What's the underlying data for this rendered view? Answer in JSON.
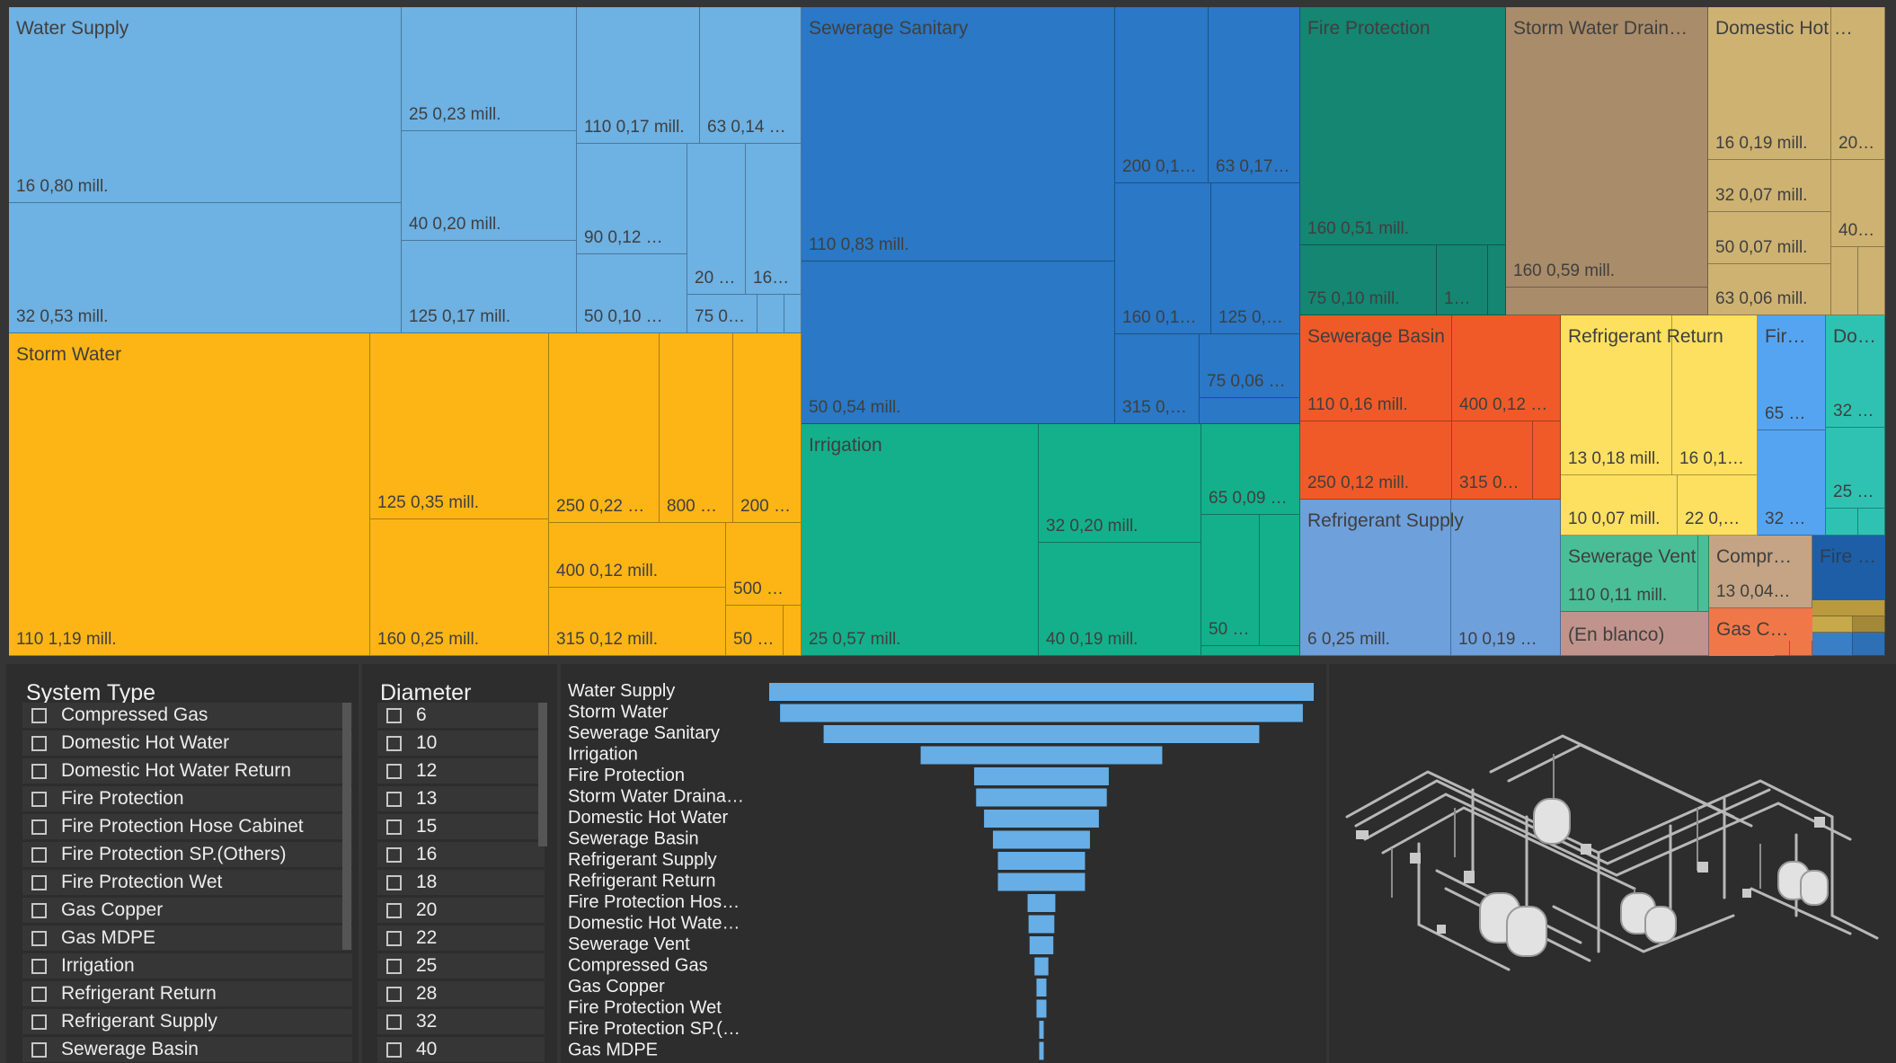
{
  "treemap": {
    "groups": {
      "water_supply": "Water Supply",
      "storm_water": "Storm Water",
      "sewerage_sanitary": "Sewerage Sanitary",
      "irrigation": "Irrigation",
      "fire_protection": "Fire Protection",
      "storm_water_drain": "Storm Water Drain…",
      "domestic_hot": "Domestic Hot …",
      "sewerage_basin": "Sewerage Basin",
      "refrigerant_return": "Refrigerant Return",
      "fire_small": "Fir…",
      "do_small": "Do…",
      "refrigerant_supply": "Refrigerant Supply",
      "sewerage_vent": "Sewerage Vent",
      "compr": "Compr…",
      "fire_dark": "Fire …",
      "en_blanco": "(En blanco)",
      "gas_c": "Gas C…"
    },
    "labels": {
      "ws_16": "16 0,80 mill.",
      "ws_32": "32 0,53 mill.",
      "ws_25": "25 0,23 mill.",
      "ws_40": "40 0,20 mill.",
      "ws_125": "125 0,17 mill.",
      "ws_110": "110 0,17 mill.",
      "ws_63": "63 0,14 …",
      "ws_90": "90 0,12 …",
      "ws_50": "50 0,10 …",
      "ws_20": "20 …",
      "ws_16b": "16…",
      "ws_75": "75 0…",
      "sw_110": "110 1,19 mill.",
      "sw_125": "125 0,35 mill.",
      "sw_160": "160 0,25 mill.",
      "sw_250": "250 0,22 …",
      "sw_800": "800 …",
      "sw_200": "200 …",
      "sw_400": "400 0,12 mill.",
      "sw_315": "315 0,12 mill.",
      "sw_500": "500 …",
      "sw_50": "50 …",
      "ss_110": "110 0,83 mill.",
      "ss_50": "50 0,54 mill.",
      "ss_200": "200 0,1…",
      "ss_63": "63 0,17…",
      "ss_160": "160 0,1…",
      "ss_125": "125 0,…",
      "ss_75": "75 0,06 …",
      "ss_315": "315 0,…",
      "ir_25": "25 0,57 mill.",
      "ir_32": "32 0,20 mill.",
      "ir_40": "40 0,19 mill.",
      "ir_65": "65 0,09 …",
      "ir_50": "50 …",
      "fp_160": "160 0,51 mill.",
      "fp_75": "75 0,10 mill.",
      "fp_1": "1…",
      "swd_160": "160 0,59 mill.",
      "dh_16": "16 0,19 mill.",
      "dh_20": "20…",
      "dh_32": "32 0,07 mill.",
      "dh_40": "40…",
      "dh_50": "50 0,07 mill.",
      "dh_63": "63 0,06 mill.",
      "sb_110": "110 0,16 mill.",
      "sb_400": "400 0,12 …",
      "sb_250": "250 0,12 mill.",
      "sb_315": "315 0…",
      "rr_13": "13 0,18 mill.",
      "rr_16": "16 0,1…",
      "rr_10": "10 0,07 mill.",
      "rr_22": "22 0,…",
      "fir_65": "65 …",
      "fir_32": "32 …",
      "do_32": "32 …",
      "do_25": "25 …",
      "rs_6": "6 0,25 mill.",
      "rs_10": "10 0,19 …",
      "sv_110": "110 0,11 mill.",
      "co_13": "13 0,04…"
    }
  },
  "system_type_slicer": {
    "title": "System Type",
    "items": [
      "Compressed Gas",
      "Domestic Hot Water",
      "Domestic Hot Water Return",
      "Fire Protection",
      "Fire Protection Hose Cabinet",
      "Fire Protection SP.(Others)",
      "Fire Protection Wet",
      "Gas Copper",
      "Gas MDPE",
      "Irrigation",
      "Refrigerant Return",
      "Refrigerant Supply",
      "Sewerage Basin"
    ]
  },
  "diameter_slicer": {
    "title": "Diameter",
    "items": [
      "6",
      "10",
      "12",
      "13",
      "15",
      "16",
      "18",
      "20",
      "22",
      "25",
      "28",
      "32",
      "40"
    ]
  },
  "chart_data": {
    "type": "bar",
    "orientation": "horizontal-funnel",
    "categories": [
      "Water Supply",
      "Storm Water",
      "Sewerage Sanitary",
      "Irrigation",
      "Fire Protection",
      "Storm Water Draina…",
      "Domestic Hot Water",
      "Sewerage Basin",
      "Refrigerant Supply",
      "Refrigerant Return",
      "Fire Protection Hos…",
      "Domestic Hot Wate…",
      "Sewerage Vent",
      "Compressed Gas",
      "Gas Copper",
      "Fire Protection Wet",
      "Fire Protection SP.(…",
      "Gas MDPE"
    ],
    "values": [
      2.75,
      2.64,
      2.2,
      1.22,
      0.68,
      0.66,
      0.58,
      0.49,
      0.44,
      0.44,
      0.14,
      0.13,
      0.12,
      0.07,
      0.05,
      0.05,
      0.02,
      0.02
    ],
    "bar_color": "#67aee6",
    "title": "",
    "xlabel": "",
    "ylabel": ""
  },
  "colors": {
    "water_supply": "#6eb1e3",
    "storm_water": "#fdb515",
    "sewerage_sanitary": "#2a78c6",
    "irrigation": "#13b08b",
    "fire_protection": "#148672",
    "storm_water_drain": "#a98c69",
    "domestic_hot": "#cdb272",
    "sewerage_basin": "#f05a28",
    "refrigerant_return": "#fde060",
    "fire_small": "#55a4f2",
    "do_small": "#2fc2b2",
    "refrigerant_supply": "#6ea0dc",
    "sewerage_vent": "#4abe96",
    "compr": "#c4a484",
    "fire_dark": "#1d5ea6",
    "en_blanco": "#c0948c",
    "gas_c": "#f07848"
  },
  "model_view": {
    "icon": "3d-piping-model-icon"
  }
}
